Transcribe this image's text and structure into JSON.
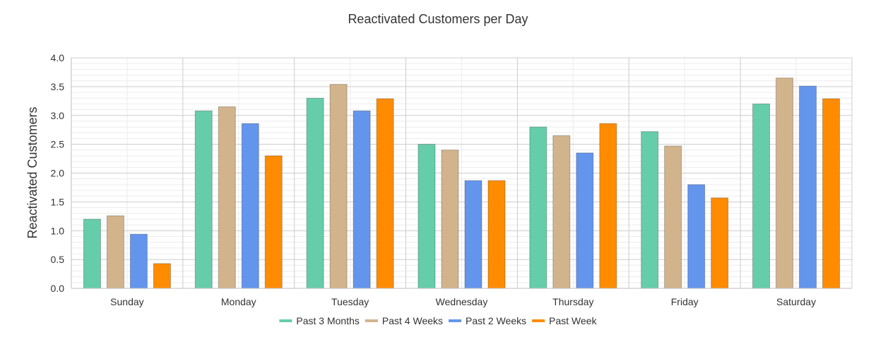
{
  "chart_data": {
    "type": "bar",
    "title": "Reactivated Customers per Day",
    "xlabel": "",
    "ylabel": "Reactivated Customers",
    "ylim": [
      0,
      4.0
    ],
    "yticks": [
      "0.0",
      "0.5",
      "1.0",
      "1.5",
      "2.0",
      "2.5",
      "3.0",
      "3.5",
      "4.0"
    ],
    "grid": true,
    "legend_position": "bottom",
    "categories": [
      "Sunday",
      "Monday",
      "Tuesday",
      "Wednesday",
      "Thursday",
      "Friday",
      "Saturday"
    ],
    "series": [
      {
        "name": "Past 3 Months",
        "color": "#66cdaa",
        "values": [
          1.2,
          3.08,
          3.3,
          2.5,
          2.8,
          2.72,
          3.2
        ]
      },
      {
        "name": "Past 4 Weeks",
        "color": "#d2b48c",
        "values": [
          1.26,
          3.15,
          3.54,
          2.4,
          2.65,
          2.47,
          3.65
        ]
      },
      {
        "name": "Past 2 Weeks",
        "color": "#6495ed",
        "values": [
          0.94,
          2.86,
          3.08,
          1.87,
          2.35,
          1.8,
          3.51
        ]
      },
      {
        "name": "Past Week",
        "color": "#ff8c00",
        "values": [
          0.43,
          2.3,
          3.29,
          1.87,
          2.86,
          1.57,
          3.29
        ]
      }
    ]
  }
}
